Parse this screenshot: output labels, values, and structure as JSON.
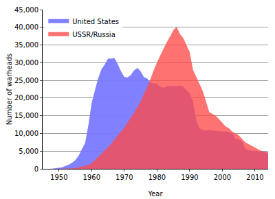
{
  "chart_data": {
    "type": "area",
    "x_label": "Year",
    "y_label": "Number of warheads",
    "x": [
      1945,
      1946,
      1947,
      1948,
      1949,
      1950,
      1951,
      1952,
      1953,
      1954,
      1955,
      1956,
      1957,
      1958,
      1959,
      1960,
      1961,
      1962,
      1963,
      1964,
      1965,
      1966,
      1967,
      1968,
      1969,
      1970,
      1971,
      1972,
      1973,
      1974,
      1975,
      1976,
      1977,
      1978,
      1979,
      1980,
      1981,
      1982,
      1983,
      1984,
      1985,
      1986,
      1987,
      1988,
      1989,
      1990,
      1991,
      1992,
      1993,
      1994,
      1995,
      1996,
      1997,
      1998,
      1999,
      2000,
      2001,
      2002,
      2003,
      2004,
      2005,
      2006,
      2007,
      2008,
      2009,
      2010,
      2011,
      2012,
      2013,
      2014
    ],
    "series": [
      {
        "name": "United States",
        "color": "#7a7aff",
        "values": [
          2,
          9,
          13,
          50,
          170,
          299,
          438,
          841,
          1169,
          1703,
          2422,
          3692,
          5543,
          7345,
          12298,
          18638,
          22229,
          25540,
          28133,
          29463,
          31139,
          31175,
          31255,
          29561,
          27552,
          26008,
          25830,
          26516,
          27835,
          28537,
          27519,
          25914,
          25542,
          24418,
          24138,
          24104,
          23208,
          22886,
          23305,
          23459,
          23368,
          23317,
          23575,
          23205,
          22217,
          21392,
          19008,
          13708,
          11511,
          10979,
          10904,
          11011,
          10903,
          10732,
          10685,
          10577,
          10526,
          10457,
          10027,
          8570,
          8360,
          7853,
          5709,
          5273,
          5113,
          5066,
          4897,
          4881,
          4804,
          4717
        ]
      },
      {
        "name": "USSR/Russia",
        "color": "#ff4a4a",
        "values": [
          null,
          null,
          null,
          null,
          1,
          5,
          25,
          50,
          120,
          150,
          200,
          426,
          660,
          869,
          1060,
          1605,
          2471,
          3322,
          4238,
          5221,
          6129,
          7089,
          8339,
          9399,
          10538,
          11643,
          13092,
          14478,
          15915,
          17385,
          19055,
          21205,
          23044,
          25393,
          27935,
          30062,
          32049,
          33952,
          35804,
          37431,
          39197,
          40159,
          38107,
          37000,
          35000,
          33000,
          28000,
          26000,
          24000,
          22000,
          19000,
          16000,
          15500,
          15000,
          14000,
          13000,
          12000,
          11500,
          10500,
          10000,
          9500,
          8500,
          7500,
          7000,
          6500,
          6000,
          5500,
          5000,
          4800,
          4500
        ]
      }
    ],
    "xlim": [
      1945,
      2014
    ],
    "xticks": [
      1950,
      1960,
      1970,
      1980,
      1990,
      2000,
      2010
    ],
    "ylim": [
      0,
      45000
    ],
    "yticks": [
      0,
      {
        "value": 5000,
        "label": "5,000"
      },
      {
        "value": 10000,
        "label": "10,000"
      },
      {
        "value": 15000,
        "label": "15,000"
      },
      {
        "value": 20000,
        "label": "20,000"
      },
      {
        "value": 25000,
        "label": "25,000"
      },
      {
        "value": 30000,
        "label": "30,000"
      },
      {
        "value": 35000,
        "label": "35,000"
      },
      {
        "value": 40000,
        "label": "40,000"
      },
      {
        "value": 45000,
        "label": "45,000"
      }
    ],
    "grid": true,
    "legend": "upper left"
  }
}
